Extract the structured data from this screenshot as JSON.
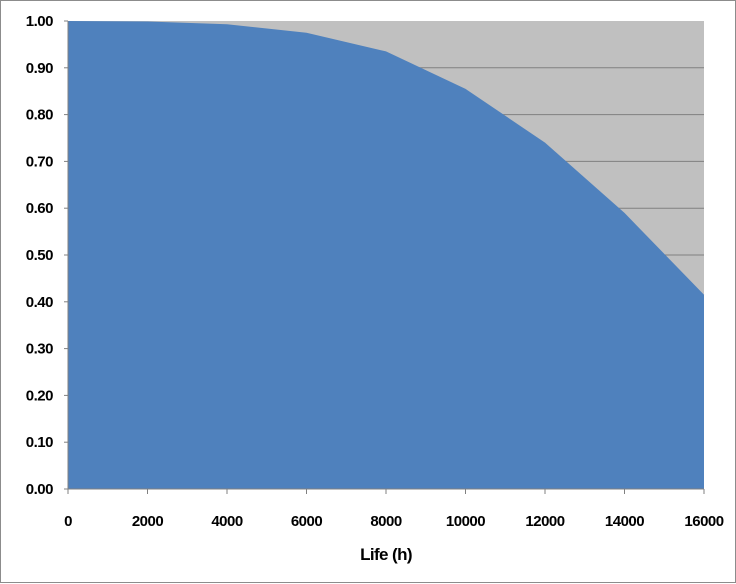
{
  "chart_data": {
    "type": "area",
    "title": "",
    "xlabel": "Life (h)",
    "ylabel": "",
    "x": [
      0,
      2000,
      4000,
      6000,
      8000,
      10000,
      12000,
      14000,
      16000
    ],
    "series": [
      {
        "values": [
          1.0,
          0.999,
          0.993,
          0.975,
          0.935,
          0.855,
          0.74,
          0.59,
          0.415
        ],
        "color": "#4f81bd"
      }
    ],
    "xlim": [
      0,
      16000
    ],
    "ylim": [
      0,
      1
    ],
    "x_ticks": [
      "0",
      "2000",
      "4000",
      "6000",
      "8000",
      "10000",
      "12000",
      "14000",
      "16000"
    ],
    "y_ticks": [
      "0.00",
      "0.10",
      "0.20",
      "0.30",
      "0.40",
      "0.50",
      "0.60",
      "0.70",
      "0.80",
      "0.90",
      "1.00"
    ],
    "grid": true,
    "legend": "none",
    "plot_background": "#c0c0c0",
    "gridline_color": "#808080",
    "area_color": "#4f81bd"
  }
}
